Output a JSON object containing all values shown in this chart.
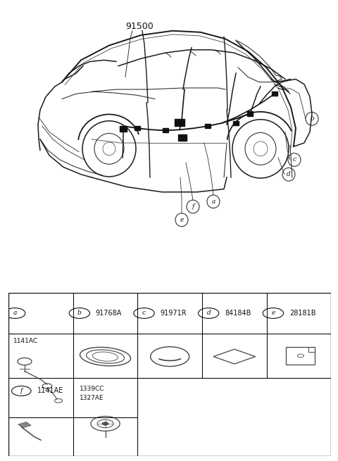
{
  "bg_color": "#ffffff",
  "fig_width": 4.8,
  "fig_height": 6.55,
  "dpi": 100,
  "part_number_main": "91500",
  "header_labels": [
    "a",
    "b",
    "c",
    "d",
    "e"
  ],
  "header_codes": [
    "",
    "91768A",
    "91971R",
    "84184B",
    "28181B"
  ],
  "bottom_label_f": "f",
  "bottom_code_f": "1141AE",
  "part_a_code": "1141AC",
  "part_b2_code": "1339CC",
  "part_b3_code": "1327AE",
  "line_color": "#2a2a2a",
  "car_color": "#1a1a1a",
  "table_color": "#111111"
}
